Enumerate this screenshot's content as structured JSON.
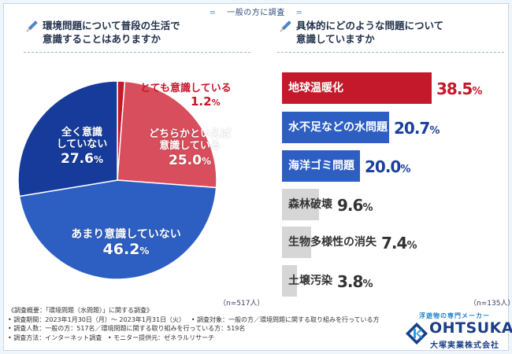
{
  "header": {
    "survey_tag": "一般の方に調査",
    "deco_left": "=",
    "deco_right": "="
  },
  "colors": {
    "red": "#c4182b",
    "pink": "#d84e5c",
    "blue": "#2d5fc3",
    "navy": "#163b9a",
    "gray": "#d6d6d6",
    "icon_blue": "#4b86c9"
  },
  "left_question": {
    "line1": "環境問題について普段の生活で",
    "line2": "意識することはありますか"
  },
  "right_question": {
    "line1": "具体的にどのような問題について",
    "line2": "意識していますか"
  },
  "chart_data": [
    {
      "type": "pie",
      "title": "環境問題について普段の生活で意識することはありますか",
      "start": "12 o'clock, clockwise",
      "slices": [
        {
          "label": "とても意識している",
          "value": 1.2,
          "value_text": "1.2",
          "color": "#c4182b"
        },
        {
          "label": "どちらかといえば意識している",
          "line1": "どちらかといえば",
          "line2": "意識している",
          "value": 25.0,
          "value_text": "25.0",
          "color": "#d84e5c"
        },
        {
          "label": "あまり意識していない",
          "value": 46.2,
          "value_text": "46.2",
          "color": "#2d5fc3"
        },
        {
          "label": "全く意識していない",
          "line1": "全く意識",
          "line2": "していない",
          "value": 27.6,
          "value_text": "27.6",
          "color": "#163b9a"
        }
      ],
      "unit": "%",
      "n_label": "（n=517人）"
    },
    {
      "type": "bar",
      "orientation": "horizontal",
      "title": "具体的にどのような問題について意識していますか",
      "categories": [
        "地球温暖化",
        "水不足などの水問題",
        "海洋ゴミ問題",
        "森林破壊",
        "生物多様性の消失",
        "土壌汚染"
      ],
      "values": [
        38.5,
        20.7,
        20.0,
        9.6,
        7.4,
        3.8
      ],
      "value_texts": [
        "38.5",
        "20.7",
        "20.0",
        "9.6",
        "7.4",
        "3.8"
      ],
      "unit": "%",
      "colors": [
        "#c4182b",
        "#2d5fc3",
        "#2d5fc3",
        "#d6d6d6",
        "#d6d6d6",
        "#d6d6d6"
      ],
      "n_label": "（n=135人）"
    }
  ],
  "notes": {
    "title": "《調査概要：「環境問題（水問題）」に関する調査》",
    "period": "• 調査期間：2023年1月30日（月）～ 2023年1月31日（火）",
    "target": "• 調査対象：一般の方／環境問題に関する取り組みを行っている方",
    "count": "• 調査人数：一般の方：517名／環境問題に関する取り組みを行っている方：519名",
    "method": "• 調査方法：インターネット調査",
    "provider": "• モニター提供元：ゼネラルリサーチ"
  },
  "logo": {
    "tagline": "浮遊物の専門メーカー",
    "name": "OHTSUKA",
    "company": "大塚実業株式会社"
  }
}
